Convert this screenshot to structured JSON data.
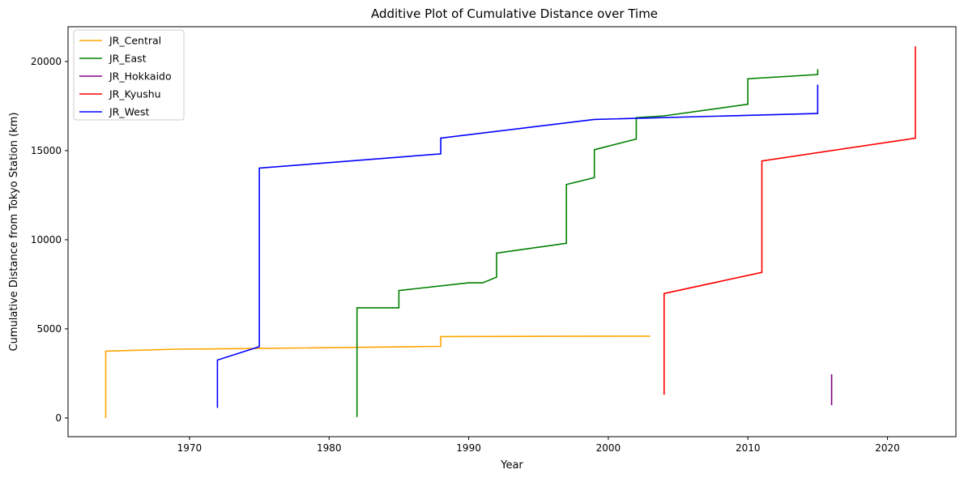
{
  "chart_data": {
    "type": "line",
    "title": "Additive Plot of Cumulative Distance over Time",
    "xlabel": "Year",
    "ylabel": "Cumulative Distance from Tokyo Station (km)",
    "xlim": [
      1961.3,
      2024.9
    ],
    "ylim": [
      -1050,
      21950
    ],
    "xticks": [
      1970,
      1980,
      1990,
      2000,
      2010,
      2020
    ],
    "yticks": [
      0,
      5000,
      10000,
      15000,
      20000
    ],
    "grid": false,
    "legend_position": "top-left",
    "series": [
      {
        "name": "JR_Central",
        "color": "#ffa500",
        "points": [
          [
            1964,
            0
          ],
          [
            1964,
            3750
          ],
          [
            1969,
            3860
          ],
          [
            1975,
            3900
          ],
          [
            1988,
            4020
          ],
          [
            1988,
            4570
          ],
          [
            2003,
            4590
          ]
        ]
      },
      {
        "name": "JR_East",
        "color": "#008000",
        "points": [
          [
            1982,
            50
          ],
          [
            1982,
            6180
          ],
          [
            1985,
            6180
          ],
          [
            1985,
            7150
          ],
          [
            1990,
            7580
          ],
          [
            1991,
            7580
          ],
          [
            1992,
            7900
          ],
          [
            1992,
            9250
          ],
          [
            1997,
            9800
          ],
          [
            1997,
            13100
          ],
          [
            1999,
            13480
          ],
          [
            1999,
            15050
          ],
          [
            2002,
            15650
          ],
          [
            2002,
            16850
          ],
          [
            2004,
            16950
          ],
          [
            2010,
            17600
          ],
          [
            2010,
            19030
          ],
          [
            2015,
            19270
          ],
          [
            2015,
            19570
          ]
        ]
      },
      {
        "name": "JR_Hokkaido",
        "color": "#800080",
        "points": [
          [
            2016,
            720
          ],
          [
            2016,
            2450
          ]
        ]
      },
      {
        "name": "JR_Kyushu",
        "color": "#ff0000",
        "points": [
          [
            2004,
            1300
          ],
          [
            2004,
            6980
          ],
          [
            2011,
            8170
          ],
          [
            2011,
            14420
          ],
          [
            2022,
            15700
          ],
          [
            2022,
            20850
          ]
        ]
      },
      {
        "name": "JR_West",
        "color": "#0000ff",
        "points": [
          [
            1972,
            570
          ],
          [
            1972,
            3250
          ],
          [
            1975,
            4000
          ],
          [
            1975,
            14020
          ],
          [
            1988,
            14820
          ],
          [
            1988,
            15700
          ],
          [
            1999,
            16750
          ],
          [
            2015,
            17080
          ],
          [
            2015,
            18700
          ]
        ]
      }
    ]
  }
}
